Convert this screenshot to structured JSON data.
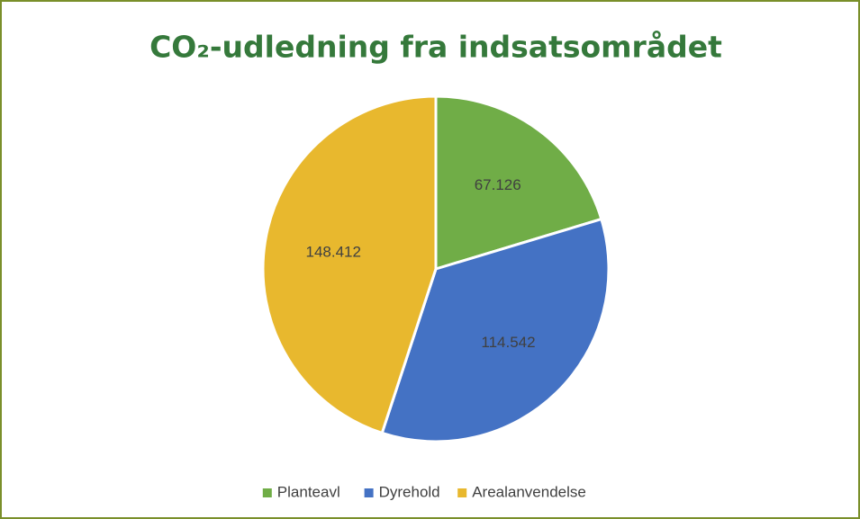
{
  "chart_data": {
    "type": "pie",
    "title": "CO₂-udledning fra indsatsområdet",
    "categories": [
      "Planteavl",
      "Dyrehold",
      "Arealanvendelse"
    ],
    "values": [
      67126,
      114542,
      148412
    ],
    "value_labels": [
      "67.126",
      "114.542",
      "148.412"
    ],
    "colors": [
      "#70ad47",
      "#4472c4",
      "#e8b82e"
    ],
    "legend": "bottom"
  }
}
